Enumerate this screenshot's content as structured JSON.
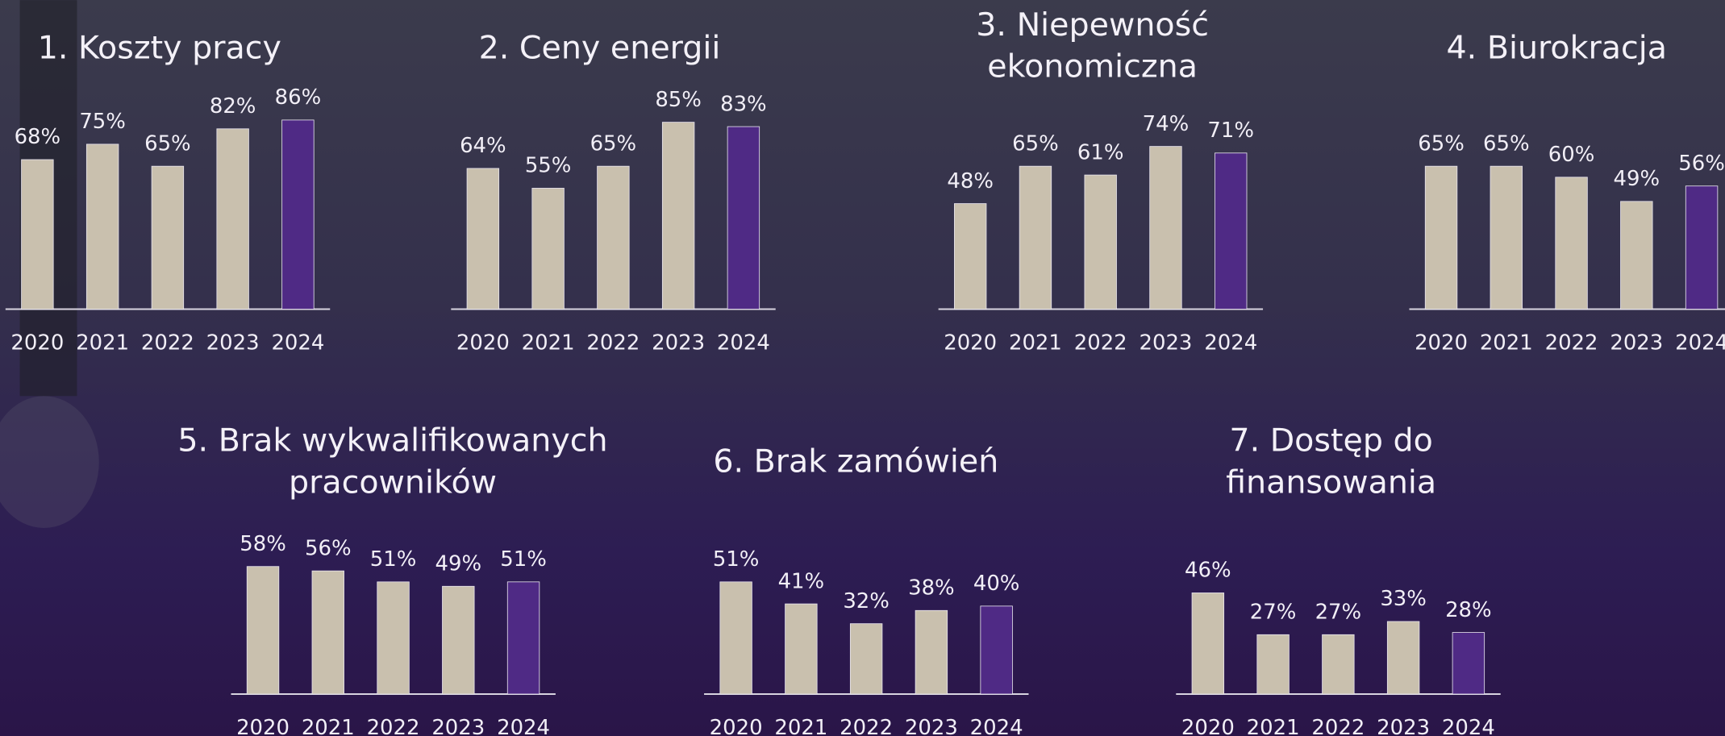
{
  "chart_data": [
    {
      "type": "bar",
      "title": "1. Koszty pracy",
      "categories": [
        "2020",
        "2021",
        "2022",
        "2023",
        "2024"
      ],
      "values": [
        68,
        75,
        65,
        82,
        86
      ],
      "value_labels": [
        "68%",
        "75%",
        "65%",
        "82%",
        "86%"
      ],
      "colors": [
        "#c9c0ae",
        "#c9c0ae",
        "#c9c0ae",
        "#c9c0ae",
        "#4f2a85"
      ]
    },
    {
      "type": "bar",
      "title": "2. Ceny energii",
      "categories": [
        "2020",
        "2021",
        "2022",
        "2023",
        "2024"
      ],
      "values": [
        64,
        55,
        65,
        85,
        83
      ],
      "value_labels": [
        "64%",
        "55%",
        "65%",
        "85%",
        "83%"
      ],
      "colors": [
        "#c9c0ae",
        "#c9c0ae",
        "#c9c0ae",
        "#c9c0ae",
        "#4f2a85"
      ]
    },
    {
      "type": "bar",
      "title": "3. Niepewność ekonomiczna",
      "categories": [
        "2020",
        "2021",
        "2022",
        "2023",
        "2024"
      ],
      "values": [
        48,
        65,
        61,
        74,
        71
      ],
      "value_labels": [
        "48%",
        "65%",
        "61%",
        "74%",
        "71%"
      ],
      "colors": [
        "#c9c0ae",
        "#c9c0ae",
        "#c9c0ae",
        "#c9c0ae",
        "#4f2a85"
      ]
    },
    {
      "type": "bar",
      "title": "4. Biurokracja",
      "categories": [
        "2020",
        "2021",
        "2022",
        "2023",
        "2024"
      ],
      "values": [
        65,
        65,
        60,
        49,
        56
      ],
      "value_labels": [
        "65%",
        "65%",
        "60%",
        "49%",
        "56%"
      ],
      "colors": [
        "#c9c0ae",
        "#c9c0ae",
        "#c9c0ae",
        "#c9c0ae",
        "#4f2a85"
      ]
    },
    {
      "type": "bar",
      "title": "5. Brak wykwalifikowanych pracowników",
      "categories": [
        "2020",
        "2021",
        "2022",
        "2023",
        "2024"
      ],
      "values": [
        58,
        56,
        51,
        49,
        51
      ],
      "value_labels": [
        "58%",
        "56%",
        "51%",
        "49%",
        "51%"
      ],
      "colors": [
        "#c9c0ae",
        "#c9c0ae",
        "#c9c0ae",
        "#c9c0ae",
        "#4f2a85"
      ]
    },
    {
      "type": "bar",
      "title": "6. Brak zamówień",
      "categories": [
        "2020",
        "2021",
        "2022",
        "2023",
        "2024"
      ],
      "values": [
        51,
        41,
        32,
        38,
        40
      ],
      "value_labels": [
        "51%",
        "41%",
        "32%",
        "38%",
        "40%"
      ],
      "colors": [
        "#c9c0ae",
        "#c9c0ae",
        "#c9c0ae",
        "#c9c0ae",
        "#4f2a85"
      ]
    },
    {
      "type": "bar",
      "title": "7. Dostęp do finansowania",
      "categories": [
        "2020",
        "2021",
        "2022",
        "2023",
        "2024"
      ],
      "values": [
        46,
        27,
        27,
        33,
        28
      ],
      "value_labels": [
        "46%",
        "27%",
        "27%",
        "33%",
        "28%"
      ],
      "colors": [
        "#c9c0ae",
        "#c9c0ae",
        "#c9c0ae",
        "#c9c0ae",
        "#4f2a85"
      ]
    }
  ]
}
